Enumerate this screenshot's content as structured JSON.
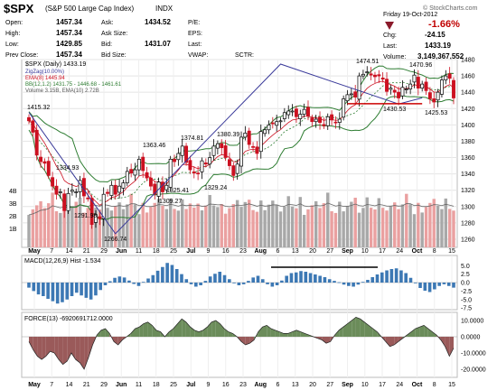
{
  "header": {
    "symbol": "$SPX",
    "name": "(S&P 500 Large Cap Index)",
    "exchange": "INDX",
    "watermark": "© StockCharts.com",
    "date": "Friday  19-Oct-2012",
    "quote": [
      {
        "label": "Open:",
        "value": "1457.34"
      },
      {
        "label": "High:",
        "value": "1457.34"
      },
      {
        "label": "Low:",
        "value": "1429.85"
      },
      {
        "label": "Prev Close:",
        "value": "1457.34"
      }
    ],
    "book": [
      {
        "label": "Ask:",
        "value": "1434.52"
      },
      {
        "label": "Ask Size:",
        "value": ""
      },
      {
        "label": "Bid:",
        "value": "1431.07"
      },
      {
        "label": "Bid Size:",
        "value": ""
      }
    ],
    "ratios": [
      "P/E:",
      "EPS:",
      "Last:",
      "VWAP:"
    ],
    "sctr": "SCTR:",
    "pct_change": "-1.66%",
    "change": [
      {
        "label": "Chg:",
        "value": "-24.15"
      },
      {
        "label": "Last:",
        "value": "1433.19"
      },
      {
        "label": "Volume:",
        "value": "3,149,367,552"
      }
    ]
  },
  "chart_data": [
    {
      "type": "candlestick",
      "legend": [
        "$SPX (Daily) 1433.19",
        "ZigZag(10.00%)",
        "EMA(8) 1445.94",
        "BB(12,1.2) 1431.75 - 1446.68 - 1461.61",
        "Volume 3.15B, EMA(10) 2.72B"
      ],
      "colors": {
        "up": "#000000",
        "down": "#cc1020",
        "ema": "#cc1020",
        "bb_upper": "#2e7d32",
        "bb_mid": "#2e7d32",
        "zigzag": "#3a3a9a",
        "volume_up": "#a8a8a8",
        "volume_down": "#eaa0a0",
        "volume_ema": "#666666",
        "support_line": "#cc0000"
      },
      "ylim": [
        1250,
        1480
      ],
      "y_ticks": [
        1260,
        1280,
        1300,
        1320,
        1340,
        1360,
        1380,
        1400,
        1420,
        1440,
        1460,
        1480
      ],
      "volume_ticks": [
        "1B",
        "2B",
        "3B",
        "4B"
      ],
      "x_labels": [
        "May",
        "7",
        "14",
        "21",
        "29",
        "Jun",
        "11",
        "18",
        "25",
        "Jul",
        "9",
        "16",
        "23",
        "Aug",
        "6",
        "13",
        "20",
        "27",
        "Sep",
        "10",
        "17",
        "24",
        "Oct",
        "8",
        "15"
      ],
      "annotations": [
        "1415.32",
        "1334.93",
        "1291.98",
        "1266.74",
        "1363.46",
        "1325.41",
        "1309.27",
        "1374.81",
        "1329.24",
        "1380.39",
        "1474.51",
        "1470.96",
        "1430.53",
        "1425.53"
      ],
      "close": [
        1405,
        1391,
        1363,
        1355,
        1353,
        1338,
        1325,
        1315,
        1318,
        1295,
        1316,
        1320,
        1318,
        1332,
        1313,
        1310,
        1278,
        1290,
        1285,
        1315,
        1316,
        1326,
        1315,
        1325,
        1329,
        1343,
        1341,
        1345,
        1358,
        1344,
        1335,
        1325,
        1315,
        1330,
        1318,
        1326,
        1358,
        1355,
        1365,
        1374,
        1354,
        1345,
        1341,
        1340,
        1356,
        1352,
        1360,
        1374,
        1377,
        1372,
        1360,
        1350,
        1338,
        1352,
        1385,
        1390,
        1376,
        1373,
        1365,
        1392,
        1394,
        1400,
        1402,
        1404,
        1405,
        1415,
        1417,
        1417,
        1410,
        1413,
        1419,
        1411,
        1404,
        1407,
        1403,
        1399,
        1410,
        1406,
        1403,
        1407,
        1432,
        1437,
        1438,
        1434,
        1460,
        1462,
        1465,
        1461,
        1459,
        1460,
        1456,
        1441,
        1445,
        1440,
        1433,
        1446,
        1444,
        1450,
        1461,
        1445,
        1450,
        1442,
        1432,
        1428,
        1440,
        1455,
        1460,
        1457,
        1433
      ]
    },
    {
      "type": "bar",
      "legend": "MACD(12,26,9)  Hist -1.534",
      "ylim": [
        -8,
        8
      ],
      "y_ticks": [
        "5.0",
        "2.5",
        "0.0",
        "-2.5",
        "-5.0",
        "-7.5"
      ],
      "color": "#3c78b4",
      "values": [
        -1.5,
        -2.5,
        -3.5,
        -4.0,
        -4.8,
        -5.5,
        -6.2,
        -5.8,
        -5.0,
        -4.0,
        -3.0,
        -3.8,
        -4.5,
        -5.0,
        -3.8,
        -2.2,
        -0.8,
        0.4,
        1.4,
        1.8,
        1.5,
        0.6,
        -0.4,
        -1.0,
        0.2,
        1.2,
        2.2,
        3.5,
        4.6,
        5.8,
        5.2,
        4.0,
        2.5,
        1.0,
        -0.5,
        -1.2,
        -0.8,
        0.5,
        1.8,
        2.6,
        3.2,
        2.2,
        1.0,
        0.0,
        -0.8,
        -0.5,
        0.5,
        1.5,
        2.0,
        1.0,
        -0.5,
        -1.2,
        -0.8,
        0.6,
        2.0,
        2.8,
        3.0,
        3.4,
        3.2,
        2.8,
        2.4,
        2.0,
        1.6,
        1.0,
        0.5,
        0.1,
        -0.6,
        -1.0,
        -1.2,
        -0.6,
        0.2,
        0.8,
        1.6,
        2.4,
        3.0,
        3.6,
        4.0,
        4.2,
        3.6,
        2.8,
        1.4,
        0.0,
        -1.6,
        -2.4,
        -2.8,
        -2.0,
        -1.0,
        -0.5,
        -1.0,
        -1.5
      ]
    },
    {
      "type": "area",
      "legend": "FORCE(13) -6920691712.0000",
      "ylim": [
        -25000000000,
        15000000000
      ],
      "y_ticks": [
        "10.0000",
        "0.0000",
        "-10.0000",
        "-20.0000"
      ],
      "colors": {
        "positive": "#6b8c5a",
        "negative": "#9a5a5a"
      },
      "values": [
        -3,
        -8,
        -12,
        -14,
        -12,
        -9,
        -10,
        -14,
        -17,
        -15,
        -10,
        -14,
        -16,
        -20,
        -13,
        -5,
        1,
        4,
        5,
        2,
        -3,
        -5,
        -2,
        0,
        2,
        5,
        6,
        8,
        9,
        7,
        4,
        3,
        0,
        3,
        5,
        8,
        11,
        9,
        6,
        4,
        3,
        4,
        6,
        9,
        10,
        8,
        5,
        3,
        2,
        0,
        -3,
        -5,
        -4,
        -2,
        3,
        6,
        7,
        5,
        4,
        3,
        2,
        2,
        3,
        4,
        3,
        2,
        1,
        0,
        -1,
        -2,
        -4,
        -3,
        1,
        4,
        6,
        8,
        10,
        12,
        11,
        9,
        7,
        5,
        3,
        0,
        -3,
        -6,
        -5,
        -3,
        -1,
        1,
        3,
        5,
        6,
        7,
        5,
        3,
        1,
        -2,
        -6,
        -12,
        -7
      ]
    }
  ]
}
